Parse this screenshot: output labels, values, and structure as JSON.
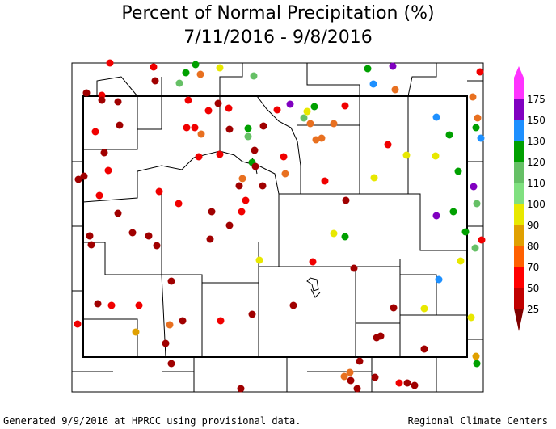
{
  "title": "Percent of Normal Precipitation (%)",
  "subtitle": "7/11/2016 - 9/8/2016",
  "footer_left": "Generated 9/9/2016 at HPRCC using provisional data.",
  "footer_right": "Regional Climate Centers",
  "legend": {
    "bins": [
      {
        "label": "175",
        "color": "#ff33ff"
      },
      {
        "label": "150",
        "color": "#8000c0"
      },
      {
        "label": "130",
        "color": "#1e90ff"
      },
      {
        "label": "120",
        "color": "#00a000"
      },
      {
        "label": "110",
        "color": "#66c066"
      },
      {
        "label": "100",
        "color": "#80e080"
      },
      {
        "label": "90",
        "color": "#e8e800"
      },
      {
        "label": "80",
        "color": "#e0a000"
      },
      {
        "label": "70",
        "color": "#ff6000"
      },
      {
        "label": "50",
        "color": "#ff0000"
      },
      {
        "label": "25",
        "color": "#c00000"
      },
      {
        "label": "",
        "color": "#800000"
      }
    ]
  },
  "colors": {
    "dark_red": "#a00000",
    "red": "#f00000",
    "orange": "#e87020",
    "gold": "#e0a000",
    "yellow": "#e8e800",
    "light_green": "#66c066",
    "green": "#00a000",
    "blue": "#1e90ff",
    "purple": "#8000c0"
  }
}
